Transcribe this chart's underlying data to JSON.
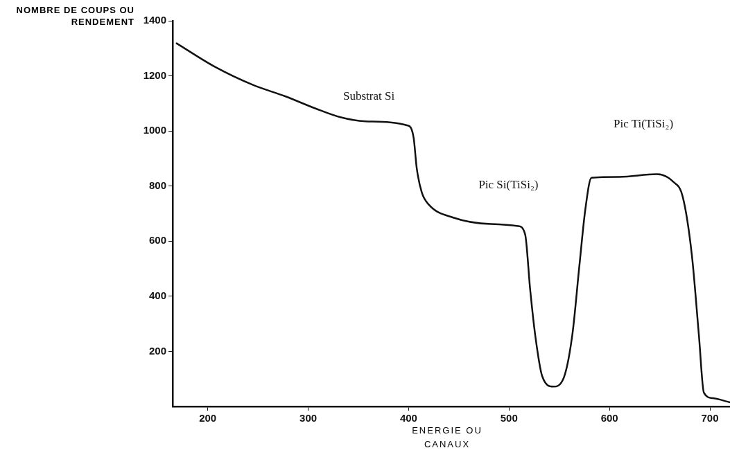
{
  "chart_data": {
    "type": "line",
    "xlabel": "ENERGIE OU CANAUX",
    "ylabel": "NOMBRE DE COUPS OU RENDEMENT",
    "x": [
      169,
      207,
      245,
      277,
      307,
      332,
      357,
      399,
      405,
      408,
      413,
      420,
      445,
      482,
      509,
      516,
      521,
      526,
      533,
      544,
      554,
      563,
      570,
      576,
      582,
      610,
      647,
      663,
      673,
      682,
      689,
      694,
      703,
      720
    ],
    "series": [
      {
        "color": "#111111",
        "values": [
          1318,
          1233,
          1167,
          1126,
          1082,
          1050,
          1035,
          1020,
          975,
          867,
          778,
          733,
          685,
          662,
          655,
          625,
          425,
          260,
          110,
          72,
          100,
          260,
          510,
          717,
          830,
          833,
          843,
          817,
          760,
          550,
          260,
          50,
          30,
          15
        ]
      }
    ],
    "xlim": [
      165,
      720
    ],
    "xticks": [
      200,
      300,
      400,
      500,
      600,
      700
    ],
    "ylim": [
      0,
      1400
    ],
    "yticks": [
      200,
      400,
      600,
      800,
      1000,
      1200,
      1400
    ],
    "grid": false,
    "legend": false,
    "marker": "none",
    "line_style": "solid",
    "annotations": [
      "Substrat Si",
      "Pic Si(TiSi₂)",
      "Pic Ti(TiSi₂)"
    ]
  }
}
